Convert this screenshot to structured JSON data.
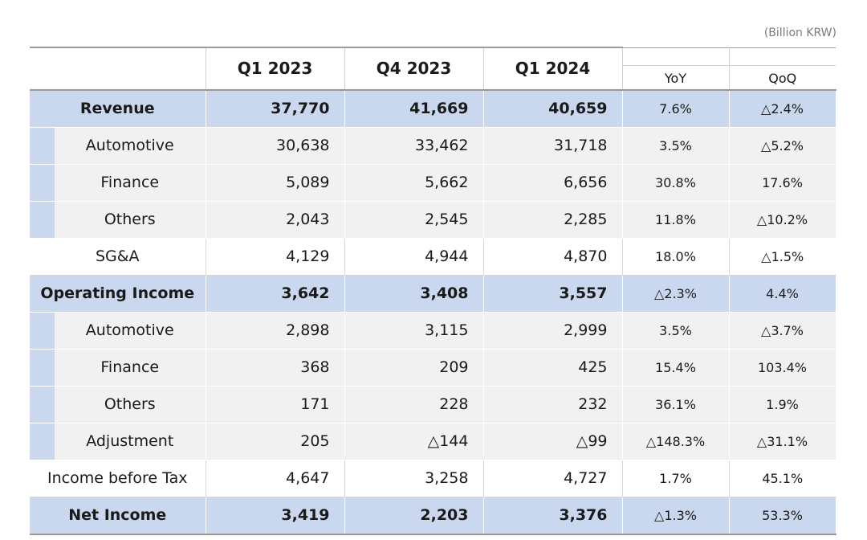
{
  "unit": "(Billion KRW)",
  "headers": [
    "",
    "Q1 2023",
    "Q4 2023",
    "Q1 2024",
    "YoY",
    "QoQ"
  ],
  "rows": [
    {
      "type": "major",
      "label": "Revenue",
      "q1_2023": "37,770",
      "q4_2023": "41,669",
      "q1_2024": "40,659",
      "yoy": "7.6%",
      "qoq": "△2.4%"
    },
    {
      "type": "sub",
      "label": "Automotive",
      "q1_2023": "30,638",
      "q4_2023": "33,462",
      "q1_2024": "31,718",
      "yoy": "3.5%",
      "qoq": "△5.2%"
    },
    {
      "type": "sub",
      "label": "Finance",
      "q1_2023": "5,089",
      "q4_2023": "5,662",
      "q1_2024": "6,656",
      "yoy": "30.8%",
      "qoq": "17.6%"
    },
    {
      "type": "sub",
      "label": "Others",
      "q1_2023": "2,043",
      "q4_2023": "2,545",
      "q1_2024": "2,285",
      "yoy": "11.8%",
      "qoq": "△10.2%"
    },
    {
      "type": "plain",
      "label": "SG&A",
      "q1_2023": "4,129",
      "q4_2023": "4,944",
      "q1_2024": "4,870",
      "yoy": "18.0%",
      "qoq": "△1.5%"
    },
    {
      "type": "major",
      "label": "Operating Income",
      "q1_2023": "3,642",
      "q4_2023": "3,408",
      "q1_2024": "3,557",
      "yoy": "△2.3%",
      "qoq": "4.4%"
    },
    {
      "type": "sub",
      "label": "Automotive",
      "q1_2023": "2,898",
      "q4_2023": "3,115",
      "q1_2024": "2,999",
      "yoy": "3.5%",
      "qoq": "△3.7%"
    },
    {
      "type": "sub",
      "label": "Finance",
      "q1_2023": "368",
      "q4_2023": "209",
      "q1_2024": "425",
      "yoy": "15.4%",
      "qoq": "103.4%"
    },
    {
      "type": "sub",
      "label": "Others",
      "q1_2023": "171",
      "q4_2023": "228",
      "q1_2024": "232",
      "yoy": "36.1%",
      "qoq": "1.9%"
    },
    {
      "type": "sub",
      "label": "Adjustment",
      "q1_2023": "205",
      "q4_2023": "△144",
      "q1_2024": "△99",
      "yoy": "△148.3%",
      "qoq": "△31.1%"
    },
    {
      "type": "plain",
      "label": "Income before Tax",
      "q1_2023": "4,647",
      "q4_2023": "3,258",
      "q1_2024": "4,727",
      "yoy": "1.7%",
      "qoq": "45.1%"
    },
    {
      "type": "major",
      "label": "Net Income",
      "q1_2023": "3,419",
      "q4_2023": "2,203",
      "q1_2024": "3,376",
      "yoy": "△1.3%",
      "qoq": "53.3%"
    }
  ]
}
